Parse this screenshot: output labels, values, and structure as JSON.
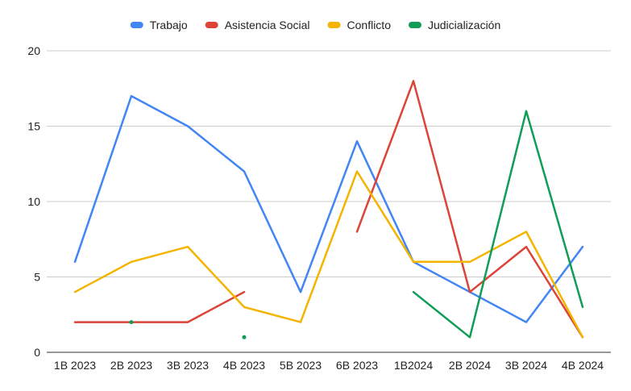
{
  "chart_data": {
    "type": "line",
    "title": "",
    "xlabel": "",
    "ylabel": "",
    "categories": [
      "1B 2023",
      "2B 2023",
      "3B 2023",
      "4B 2023",
      "5B 2023",
      "6B 2023",
      "1B2024",
      "2B 2024",
      "3B 2024",
      "4B 2024"
    ],
    "ylim": [
      0,
      20
    ],
    "yticks": [
      "0",
      "5",
      "10",
      "15",
      "20"
    ],
    "grid": true,
    "legend_position": "top",
    "series": [
      {
        "name": "Trabajo",
        "color": "#4285F4",
        "values": [
          6,
          17,
          15,
          12,
          4,
          14,
          6,
          4,
          2,
          7
        ]
      },
      {
        "name": "Asistencia Social",
        "color": "#DB4437",
        "values": [
          2,
          2,
          2,
          4,
          null,
          8,
          18,
          4,
          7,
          1
        ]
      },
      {
        "name": "Conflicto",
        "color": "#F4B400",
        "values": [
          4,
          6,
          7,
          3,
          2,
          12,
          6,
          6,
          8,
          1
        ]
      },
      {
        "name": "Judicialización",
        "color": "#0F9D58",
        "values": [
          null,
          2,
          null,
          1,
          null,
          null,
          4,
          1,
          16,
          3
        ]
      }
    ]
  }
}
